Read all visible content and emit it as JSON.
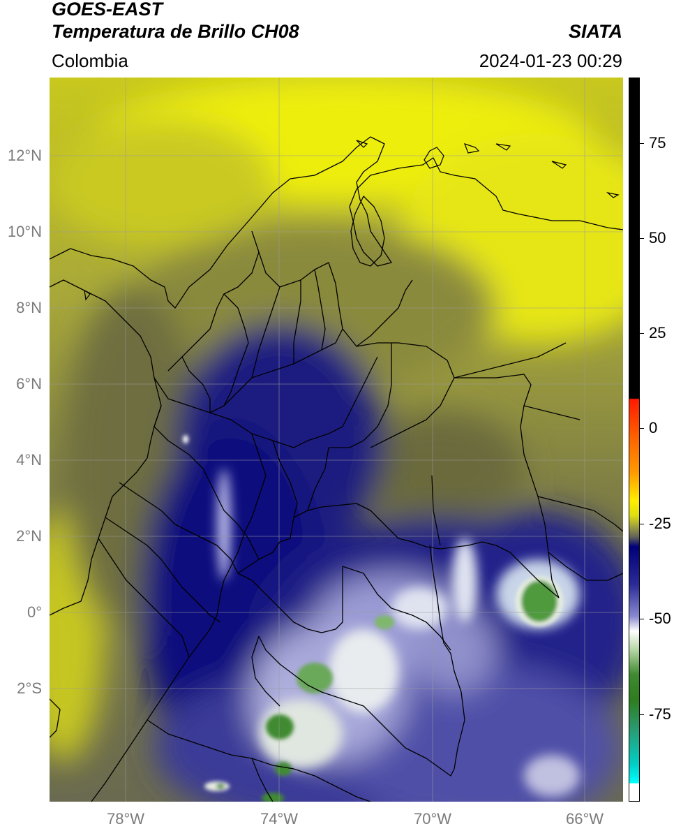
{
  "header": {
    "title_line1": "GOES-EAST",
    "title_line2": "Temperatura de Brillo CH08",
    "region": "Colombia",
    "brand": "SIATA",
    "timestamp": "2024-01-23 00:29"
  },
  "map": {
    "lat_ticks": [
      {
        "label": "12°N",
        "value": 12
      },
      {
        "label": "10°N",
        "value": 10
      },
      {
        "label": "8°N",
        "value": 8
      },
      {
        "label": "6°N",
        "value": 6
      },
      {
        "label": "4°N",
        "value": 4
      },
      {
        "label": "2°N",
        "value": 2
      },
      {
        "label": "0°",
        "value": 0
      },
      {
        "label": "2°S",
        "value": -2
      }
    ],
    "lon_ticks": [
      {
        "label": "78°W",
        "value": -78
      },
      {
        "label": "74°W",
        "value": -74
      },
      {
        "label": "70°W",
        "value": -70
      },
      {
        "label": "66°W",
        "value": -66
      }
    ],
    "extent": {
      "lon_min": -80,
      "lon_max": -65,
      "lat_min": -5,
      "lat_max": 14
    }
  },
  "colorbar": {
    "ticks": [
      {
        "label": "75",
        "value": 75
      },
      {
        "label": "50",
        "value": 50
      },
      {
        "label": "25",
        "value": 25
      },
      {
        "label": "0",
        "value": 0
      },
      {
        "label": "-25",
        "value": -25
      },
      {
        "label": "-50",
        "value": -50
      },
      {
        "label": "-75",
        "value": -75
      }
    ],
    "colors": {
      "warm_black": "#000000",
      "red": "#ff0000",
      "orange": "#ff9900",
      "yellow": "#ffff00",
      "olive": "#6e6e3c",
      "navy": "#00007a",
      "white": "#ffffff",
      "green": "#2e7d1e",
      "cyan": "#00e5e5"
    }
  }
}
